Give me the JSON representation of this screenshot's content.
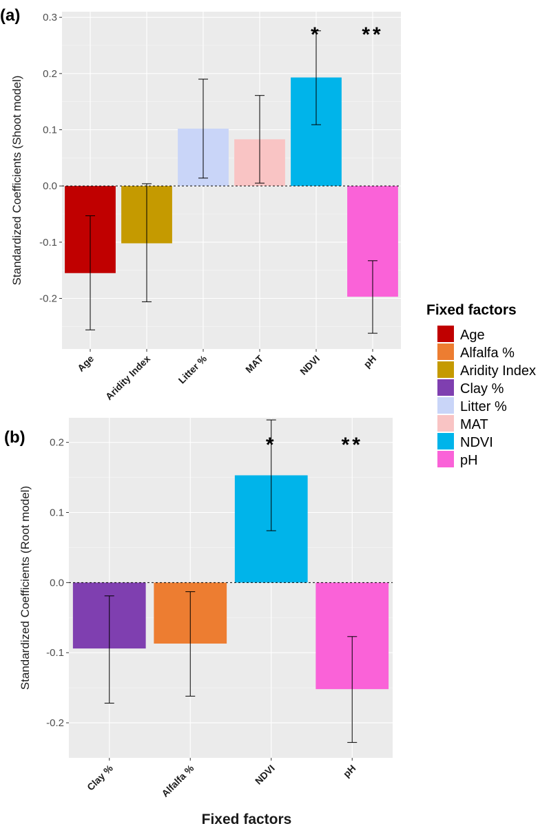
{
  "figure": {
    "x_axis_title": "Fixed factors"
  },
  "legend": {
    "title": "Fixed factors",
    "entries": [
      {
        "label": "Age",
        "color": "#c00000"
      },
      {
        "label": "Alfalfa %",
        "color": "#ed7d31"
      },
      {
        "label": "Aridity Index",
        "color": "#c59a00"
      },
      {
        "label": "Clay %",
        "color": "#7f3fb0"
      },
      {
        "label": "Litter %",
        "color": "#c9d5f8"
      },
      {
        "label": "MAT",
        "color": "#f9c4c4"
      },
      {
        "label": "NDVI",
        "color": "#00b4ea"
      },
      {
        "label": "pH",
        "color": "#fa62d8"
      }
    ]
  },
  "chart_data": [
    {
      "type": "bar",
      "panel_label": "(a)",
      "ylabel": "Standardized Coefficients (Shoot model)",
      "xlabel": "",
      "ylim": [
        -0.29,
        0.31
      ],
      "yticks": [
        -0.2,
        -0.1,
        0.0,
        0.1,
        0.2,
        0.3
      ],
      "ytick_labels": [
        "-0.2",
        "-0.1",
        "0.0",
        "0.1",
        "0.2",
        "0.3"
      ],
      "categories": [
        "Age",
        "Aridity Index",
        "Litter %",
        "MAT",
        "NDVI",
        "pH"
      ],
      "values": [
        -0.155,
        -0.102,
        0.102,
        0.083,
        0.193,
        -0.197
      ],
      "error_low": [
        -0.256,
        -0.206,
        0.014,
        0.005,
        0.109,
        -0.262
      ],
      "error_high": [
        -0.053,
        0.004,
        0.19,
        0.161,
        0.276,
        -0.133
      ],
      "colors": [
        "#c00000",
        "#c59a00",
        "#c9d5f8",
        "#f9c4c4",
        "#00b4ea",
        "#fa62d8"
      ],
      "significance": [
        "",
        "",
        "",
        "",
        "*",
        "**"
      ]
    },
    {
      "type": "bar",
      "panel_label": "(b)",
      "ylabel": "Standardized Coefficients (Root model)",
      "xlabel": "Fixed factors",
      "ylim": [
        -0.25,
        0.235
      ],
      "yticks": [
        -0.2,
        -0.1,
        0.0,
        0.1,
        0.2
      ],
      "ytick_labels": [
        "-0.2",
        "-0.1",
        "0.0",
        "0.1",
        "0.2"
      ],
      "categories": [
        "Clay %",
        "Alfalfa %",
        "NDVI",
        "pH"
      ],
      "values": [
        -0.094,
        -0.087,
        0.153,
        -0.152
      ],
      "error_low": [
        -0.172,
        -0.162,
        0.074,
        -0.228
      ],
      "error_high": [
        -0.019,
        -0.013,
        0.232,
        -0.077
      ],
      "colors": [
        "#7f3fb0",
        "#ed7d31",
        "#00b4ea",
        "#fa62d8"
      ],
      "significance": [
        "",
        "",
        "*",
        "**"
      ]
    }
  ]
}
